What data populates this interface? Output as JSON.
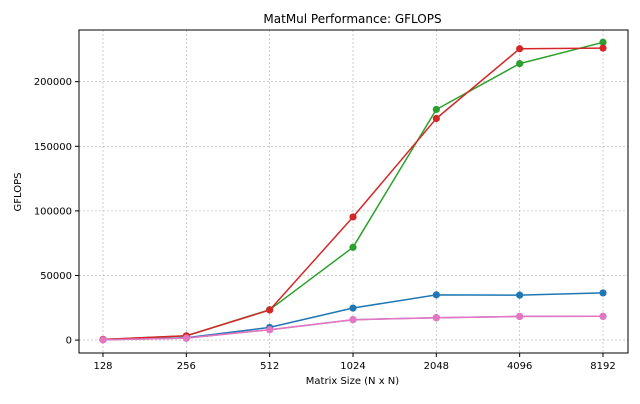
{
  "chart_data": {
    "type": "line",
    "title": "MatMul Performance: GFLOPS",
    "xlabel": "Matrix Size (N x N)",
    "ylabel": "GFLOPS",
    "categories": [
      "128",
      "256",
      "512",
      "1024",
      "2048",
      "4096",
      "8192"
    ],
    "ylim": [
      -10000,
      240000
    ],
    "yticks": [
      0,
      50000,
      100000,
      150000,
      200000
    ],
    "ytick_labels": [
      "0",
      "50000",
      "100000",
      "150000",
      "200000"
    ],
    "grid": true,
    "legend": "none",
    "series": [
      {
        "color": "#1f77b4",
        "values": [
          300,
          1800,
          9800,
          24800,
          35000,
          34800,
          36500
        ]
      },
      {
        "color": "#9467bd",
        "values": [
          200,
          1500,
          8000,
          15800,
          17300,
          18300,
          18400
        ]
      },
      {
        "color": "#2ca02c",
        "values": [
          500,
          3200,
          23500,
          71800,
          178500,
          214000,
          230500
        ]
      },
      {
        "color": "#d62728",
        "values": [
          500,
          3300,
          23300,
          95300,
          171500,
          225500,
          226000
        ]
      },
      {
        "color": "#e377c2",
        "values": [
          200,
          1500,
          8000,
          15800,
          17300,
          18300,
          18400
        ]
      }
    ]
  }
}
